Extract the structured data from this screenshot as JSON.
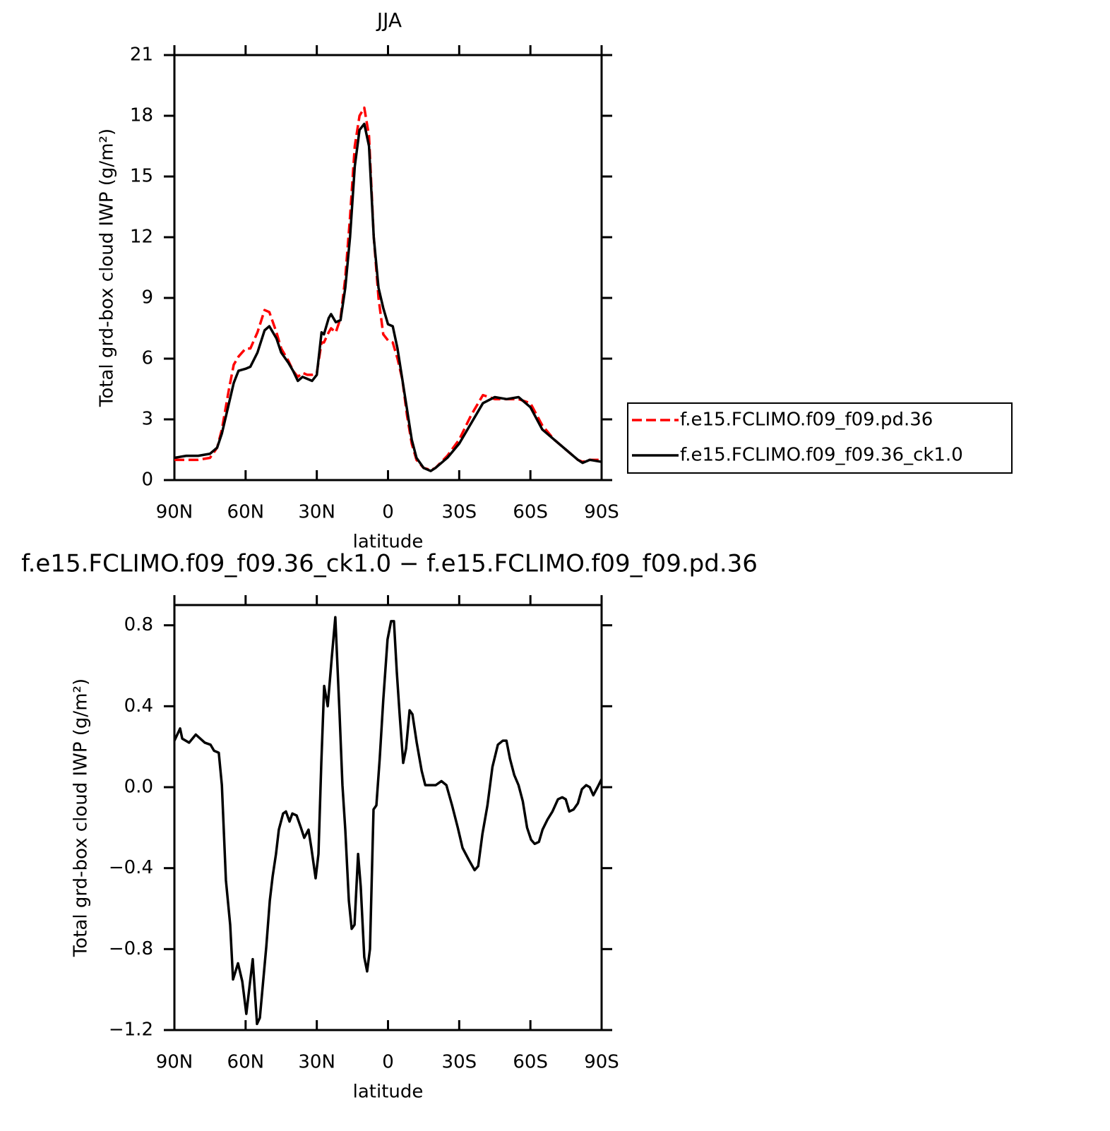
{
  "chart_data": [
    {
      "type": "line",
      "title": "JJA",
      "xlabel": "latitude",
      "ylabel": "Total grd-box cloud IWP (g/m²)",
      "x": [
        90,
        85,
        80,
        75,
        72,
        70,
        67,
        65,
        63,
        60,
        58,
        55,
        52,
        50,
        47,
        45,
        42,
        40,
        38,
        36,
        34,
        32,
        30,
        28,
        27,
        25,
        24,
        22,
        20,
        18,
        16,
        14,
        12,
        10,
        8,
        6,
        4,
        2,
        0,
        -2,
        -4,
        -6,
        -8,
        -10,
        -12,
        -15,
        -18,
        -20,
        -25,
        -30,
        -35,
        -40,
        -45,
        -50,
        -55,
        -60,
        -65,
        -70,
        -75,
        -80,
        -82,
        -85,
        -90
      ],
      "xlim": [
        90,
        -90
      ],
      "xticks": [
        {
          "value": 90,
          "label": "90N"
        },
        {
          "value": 60,
          "label": "60N"
        },
        {
          "value": 30,
          "label": "30N"
        },
        0,
        {
          "value": -30,
          "label": "30S"
        },
        {
          "value": -60,
          "label": "60S"
        },
        {
          "value": -90,
          "label": "90S"
        }
      ],
      "ylim": [
        0,
        21
      ],
      "yticks": [
        0,
        3,
        6,
        9,
        12,
        15,
        18,
        21
      ],
      "legend": "right",
      "series": [
        {
          "name": "f.e15.FCLIMO.f09_f09.pd.36",
          "color": "#ff0000",
          "line_style": "dashed",
          "values": [
            1.0,
            1.0,
            1.0,
            1.1,
            1.6,
            2.5,
            4.5,
            5.7,
            6.1,
            6.5,
            6.5,
            7.3,
            8.4,
            8.3,
            7.3,
            6.5,
            5.9,
            5.4,
            5.1,
            5.3,
            5.2,
            5.2,
            5.3,
            6.8,
            6.8,
            7.3,
            7.5,
            7.3,
            8.0,
            10.0,
            13.0,
            16.5,
            18.0,
            18.4,
            17.0,
            12.0,
            9.0,
            7.2,
            6.9,
            6.8,
            6.0,
            5.0,
            3.2,
            1.8,
            1.0,
            0.6,
            0.5,
            0.6,
            1.2,
            2.0,
            3.2,
            4.2,
            4.0,
            4.0,
            4.0,
            3.8,
            2.7,
            2.0,
            1.5,
            1.0,
            0.9,
            1.0,
            1.0
          ]
        },
        {
          "name": "f.e15.FCLIMO.f09_f09.36_ck1.0",
          "color": "#000000",
          "line_style": "solid",
          "values": [
            1.1,
            1.2,
            1.2,
            1.3,
            1.6,
            2.3,
            3.8,
            4.8,
            5.4,
            5.5,
            5.6,
            6.3,
            7.4,
            7.6,
            7.0,
            6.3,
            5.8,
            5.4,
            4.9,
            5.1,
            5.0,
            4.9,
            5.2,
            7.3,
            7.2,
            8.0,
            8.2,
            7.8,
            7.9,
            9.5,
            12.0,
            15.5,
            17.3,
            17.6,
            16.5,
            12.0,
            9.5,
            8.5,
            7.7,
            7.6,
            6.5,
            5.0,
            3.5,
            2.0,
            1.1,
            0.6,
            0.45,
            0.6,
            1.1,
            1.8,
            2.8,
            3.8,
            4.1,
            4.0,
            4.1,
            3.6,
            2.5,
            2.0,
            1.5,
            1.0,
            0.85,
            1.0,
            0.9
          ]
        }
      ]
    },
    {
      "type": "line",
      "title": "f.e15.FCLIMO.f09_f09.36_ck1.0 − f.e15.FCLIMO.f09_f09.pd.36",
      "xlabel": "latitude",
      "ylabel": "Total grd-box cloud IWP (g/m²)",
      "x": [
        90,
        87.6,
        86.7,
        83.8,
        81,
        77.2,
        74.8,
        73.3,
        71.3,
        70,
        68.3,
        66.5,
        65.3,
        63.2,
        61.4,
        59.7,
        57,
        55.2,
        54,
        51.3,
        49.8,
        48.6,
        47.2,
        46,
        44.2,
        43,
        41.5,
        40.3,
        38.5,
        36.7,
        35.3,
        33.5,
        32.3,
        30.5,
        29.3,
        28.1,
        26.9,
        25.4,
        23.7,
        22.2,
        20.4,
        19.2,
        18,
        16.5,
        15.3,
        14.1,
        12.6,
        11.5,
        10,
        8.8,
        7.6,
        6.1,
        4.9,
        3.5,
        2,
        0.2,
        -1.3,
        -2.5,
        -3.7,
        -4.9,
        -6.4,
        -7.6,
        -9.1,
        -10.3,
        -12.1,
        -14.2,
        -15.7,
        -18,
        -20.1,
        -22.5,
        -24.6,
        -27,
        -29.4,
        -31.4,
        -34.1,
        -36.5,
        -38,
        -39.8,
        -41.9,
        -44,
        -46.3,
        -48.4,
        -49.9,
        -51.4,
        -53.2,
        -55,
        -56.8,
        -58.6,
        -60.3,
        -61.8,
        -63.6,
        -65.1,
        -67.2,
        -69.3,
        -71.6,
        -73.4,
        -74.9,
        -76.4,
        -78.2,
        -80,
        -81.7,
        -83.5,
        -85,
        -86.5,
        -88.3,
        -90
      ],
      "values": [
        0.23,
        0.29,
        0.24,
        0.22,
        0.26,
        0.22,
        0.21,
        0.18,
        0.17,
        0.01,
        -0.46,
        -0.68,
        -0.95,
        -0.87,
        -0.96,
        -1.12,
        -0.85,
        -1.17,
        -1.14,
        -0.79,
        -0.56,
        -0.44,
        -0.33,
        -0.21,
        -0.13,
        -0.12,
        -0.17,
        -0.13,
        -0.14,
        -0.2,
        -0.25,
        -0.21,
        -0.3,
        -0.45,
        -0.33,
        0.12,
        0.5,
        0.4,
        0.64,
        0.84,
        0.36,
        0.01,
        -0.21,
        -0.56,
        -0.7,
        -0.68,
        -0.33,
        -0.49,
        -0.84,
        -0.91,
        -0.8,
        -0.11,
        -0.09,
        0.14,
        0.43,
        0.73,
        0.82,
        0.82,
        0.57,
        0.36,
        0.12,
        0.19,
        0.38,
        0.36,
        0.22,
        0.08,
        0.01,
        0.01,
        0.01,
        0.03,
        0.01,
        -0.09,
        -0.2,
        -0.3,
        -0.36,
        -0.41,
        -0.39,
        -0.23,
        -0.09,
        0.1,
        0.21,
        0.23,
        0.23,
        0.14,
        0.06,
        0.01,
        -0.07,
        -0.2,
        -0.26,
        -0.28,
        -0.27,
        -0.21,
        -0.16,
        -0.12,
        -0.06,
        -0.05,
        -0.06,
        -0.12,
        -0.11,
        -0.08,
        -0.01,
        0.01,
        0,
        -0.04,
        0,
        0.04
      ],
      "color": "#000000",
      "line_style": "solid",
      "xlim": [
        90,
        -90
      ],
      "xticks": [
        {
          "value": 90,
          "label": "90N"
        },
        {
          "value": 60,
          "label": "60N"
        },
        {
          "value": 30,
          "label": "30N"
        },
        0,
        {
          "value": -30,
          "label": "30S"
        },
        {
          "value": -60,
          "label": "60S"
        },
        {
          "value": -90,
          "label": "90S"
        }
      ],
      "ylim": [
        -1.2,
        0.9
      ],
      "yticks": [
        {
          "value": -1.2,
          "label": "−1.2"
        },
        {
          "value": -0.8,
          "label": "−0.8"
        },
        {
          "value": -0.4,
          "label": "−0.4"
        },
        {
          "value": 0,
          "label": "0.0"
        },
        0.4,
        0.8
      ]
    }
  ]
}
